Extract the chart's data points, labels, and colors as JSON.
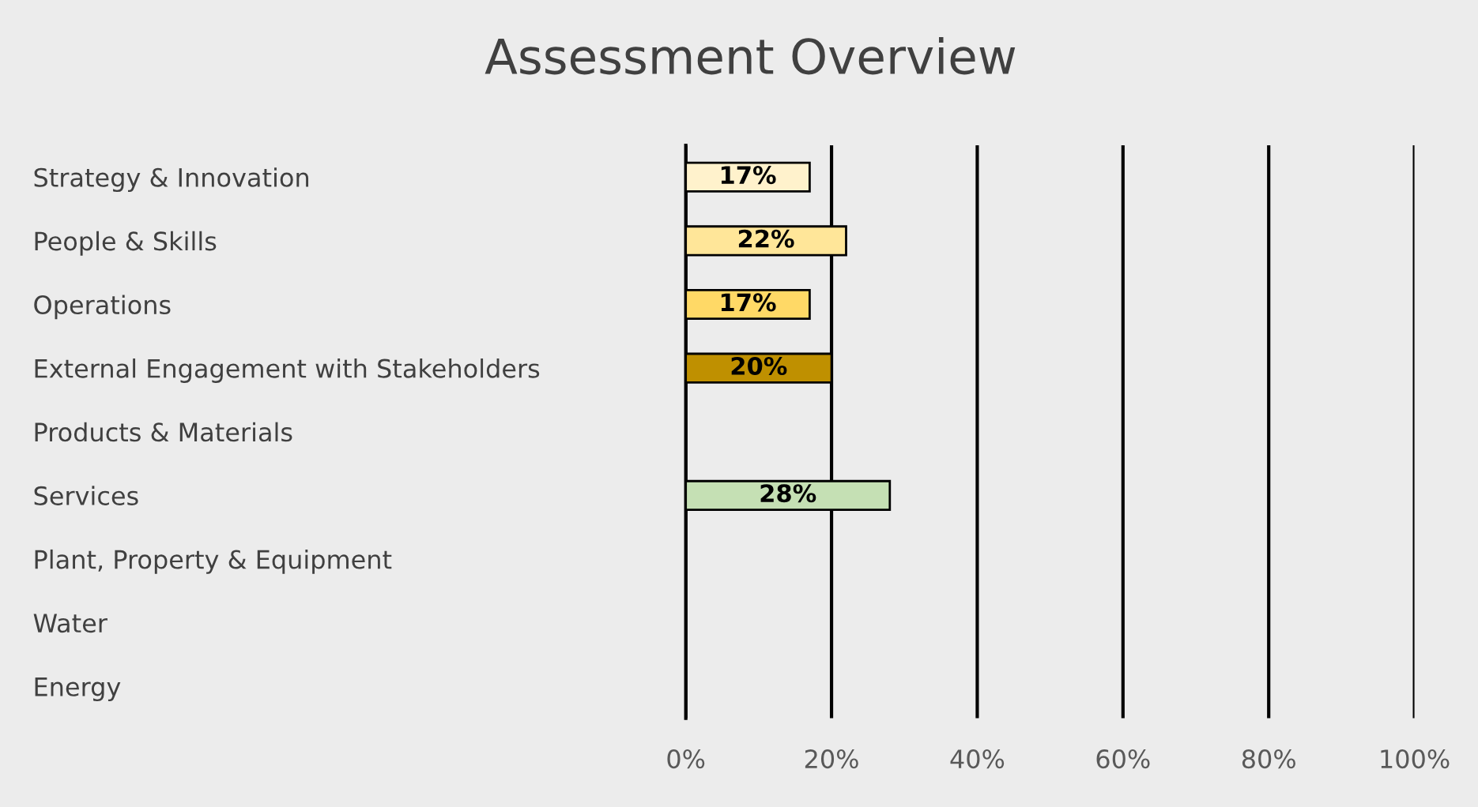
{
  "chart_data": {
    "type": "bar",
    "orientation": "horizontal",
    "title": "Assessment Overview",
    "categories": [
      "Strategy & Innovation",
      "People & Skills",
      "Operations",
      "External Engagement with Stakeholders",
      "Products & Materials",
      "Services",
      "Plant, Property & Equipment",
      "Water",
      "Energy"
    ],
    "values": [
      17,
      22,
      17,
      20,
      0,
      28,
      0,
      0,
      0
    ],
    "value_labels": [
      "17%",
      "22%",
      "17%",
      "20%",
      null,
      "28%",
      null,
      null,
      null
    ],
    "colors": [
      "#fff2cc",
      "#ffe699",
      "#ffd966",
      "#bf9000",
      "#000000",
      "#c5e0b4",
      "#000000",
      "#000000",
      "#000000"
    ],
    "xlim": [
      0,
      100
    ],
    "xticks": [
      {
        "value": 0,
        "label": "0%"
      },
      {
        "value": 20,
        "label": "20%"
      },
      {
        "value": 40,
        "label": "40%"
      },
      {
        "value": 60,
        "label": "60%"
      },
      {
        "value": 80,
        "label": "80%"
      },
      {
        "value": 100,
        "label": "100%"
      }
    ],
    "grid": "x"
  }
}
